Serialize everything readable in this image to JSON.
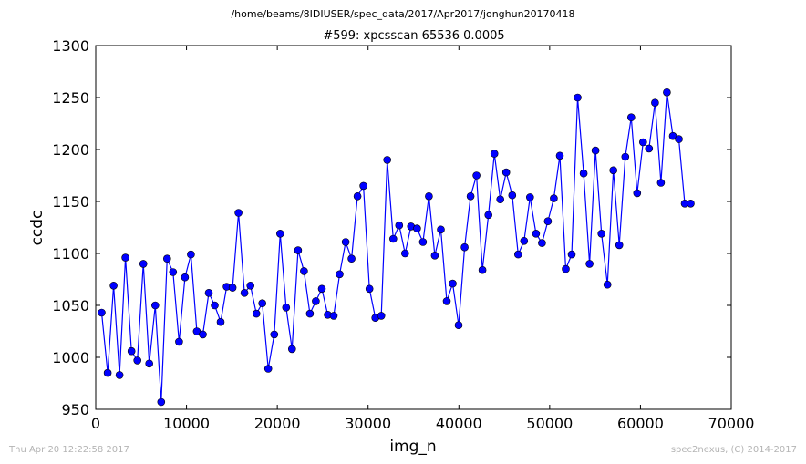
{
  "chart_data": {
    "type": "line",
    "suptitle": "/home/beams/8IDIUSER/spec_data/2017/Apr2017/jonghun20170418",
    "title": "#599: xpcsscan 65536 0.0005",
    "xlabel": "img_n",
    "ylabel": "ccdc",
    "xlim": [
      0,
      70000
    ],
    "ylim": [
      950,
      1300
    ],
    "xticks": [
      0,
      10000,
      20000,
      30000,
      40000,
      50000,
      60000,
      70000
    ],
    "yticks": [
      950,
      1000,
      1050,
      1100,
      1150,
      1200,
      1250,
      1300
    ],
    "grid": false,
    "series_color": "#0000ff",
    "x": [
      656,
      1311,
      1966,
      2622,
      3277,
      3932,
      4588,
      5243,
      5898,
      6554,
      7209,
      7864,
      8520,
      9175,
      9830,
      10486,
      11141,
      11796,
      12452,
      13107,
      13762,
      14418,
      15073,
      15728,
      16384,
      17039,
      17694,
      18350,
      19005,
      19660,
      20316,
      20971,
      21626,
      22282,
      22937,
      23592,
      24248,
      24903,
      25558,
      26214,
      26869,
      27524,
      28180,
      28835,
      29490,
      30146,
      30801,
      31456,
      32112,
      32767,
      33422,
      34078,
      34733,
      35388,
      36044,
      36699,
      37354,
      38010,
      38665,
      39320,
      39976,
      40631,
      41286,
      41942,
      42597,
      43252,
      43908,
      44563,
      45218,
      45874,
      46529,
      47184,
      47840,
      48495,
      49150,
      49806,
      50461,
      51116,
      51772,
      52427,
      53082,
      53738,
      54393,
      55048,
      55704,
      56359,
      57014,
      57670,
      58325,
      58980,
      59636,
      60291,
      60946,
      61602,
      62257,
      62912,
      63568,
      64223,
      64878,
      65534
    ],
    "y": [
      1043,
      985,
      1069,
      983,
      1096,
      1006,
      997,
      1090,
      994,
      1050,
      957,
      1095,
      1082,
      1015,
      1077,
      1099,
      1025,
      1022,
      1062,
      1050,
      1034,
      1068,
      1067,
      1139,
      1062,
      1069,
      1042,
      1052,
      989,
      1022,
      1119,
      1048,
      1008,
      1103,
      1083,
      1042,
      1054,
      1066,
      1041,
      1040,
      1080,
      1111,
      1095,
      1155,
      1165,
      1066,
      1038,
      1040,
      1190,
      1114,
      1127,
      1100,
      1126,
      1124,
      1111,
      1155,
      1098,
      1123,
      1054,
      1071,
      1031,
      1106,
      1155,
      1175,
      1084,
      1137,
      1196,
      1152,
      1178,
      1156,
      1099,
      1112,
      1154,
      1119,
      1110,
      1131,
      1153,
      1194,
      1085,
      1099,
      1250,
      1177,
      1090,
      1199,
      1119,
      1070,
      1180,
      1108,
      1193,
      1231,
      1158,
      1207,
      1201,
      1245,
      1168,
      1255,
      1213,
      1210,
      1148,
      1148
    ]
  },
  "footer": {
    "timestamp": "Thu Apr 20 12:22:58 2017",
    "credit": "spec2nexus, (C) 2014-2017"
  }
}
